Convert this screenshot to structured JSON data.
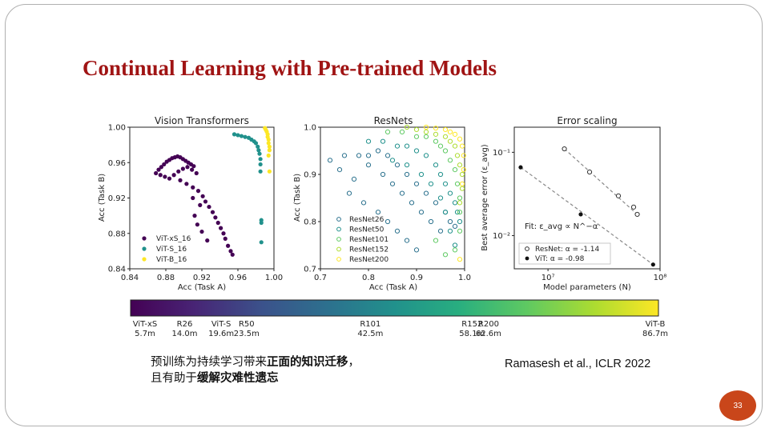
{
  "slide": {
    "title": "Continual Learning with Pre-trained Models",
    "caption": {
      "line1_plain": "预训练为持续学习带来",
      "line1_bold": "正面的知识迁移",
      "line1_end": "，",
      "line2_plain": "且有助于",
      "line2_bold": "缓解灾难性遗忘"
    },
    "citation": "Ramasesh et al., ICLR 2022",
    "page_number": "33"
  },
  "colors": {
    "title": "#a01414",
    "badge": "#c9461a",
    "vit_xs": "#440154",
    "vit_s": "#21918c",
    "vit_b": "#fde725"
  },
  "chart_data": [
    {
      "type": "scatter",
      "title": "Vision Transformers",
      "xlabel": "Acc (Task A)",
      "ylabel": "Acc (Task B)",
      "xlim": [
        0.84,
        1.0
      ],
      "ylim": [
        0.84,
        1.0
      ],
      "xticks": [
        "0.84",
        "0.88",
        "0.92",
        "0.96",
        "1.00"
      ],
      "yticks": [
        "0.84",
        "0.88",
        "0.92",
        "0.96",
        "1.00"
      ],
      "series": [
        {
          "name": "ViT-xS_16",
          "color": "#440154",
          "marker": "filled",
          "points": [
            [
              0.869,
              0.948
            ],
            [
              0.872,
              0.952
            ],
            [
              0.875,
              0.955
            ],
            [
              0.878,
              0.958
            ],
            [
              0.881,
              0.961
            ],
            [
              0.884,
              0.963
            ],
            [
              0.887,
              0.965
            ],
            [
              0.89,
              0.966
            ],
            [
              0.893,
              0.967
            ],
            [
              0.896,
              0.966
            ],
            [
              0.899,
              0.964
            ],
            [
              0.902,
              0.962
            ],
            [
              0.905,
              0.96
            ],
            [
              0.908,
              0.958
            ],
            [
              0.911,
              0.956
            ],
            [
              0.874,
              0.946
            ],
            [
              0.879,
              0.944
            ],
            [
              0.884,
              0.942
            ],
            [
              0.889,
              0.946
            ],
            [
              0.894,
              0.95
            ],
            [
              0.899,
              0.953
            ],
            [
              0.904,
              0.955
            ],
            [
              0.909,
              0.952
            ],
            [
              0.914,
              0.948
            ],
            [
              0.896,
              0.94
            ],
            [
              0.903,
              0.936
            ],
            [
              0.91,
              0.932
            ],
            [
              0.916,
              0.928
            ],
            [
              0.921,
              0.922
            ],
            [
              0.924,
              0.916
            ],
            [
              0.928,
              0.91
            ],
            [
              0.932,
              0.904
            ],
            [
              0.935,
              0.898
            ],
            [
              0.938,
              0.892
            ],
            [
              0.941,
              0.886
            ],
            [
              0.944,
              0.88
            ],
            [
              0.946,
              0.874
            ],
            [
              0.949,
              0.866
            ],
            [
              0.952,
              0.86
            ],
            [
              0.954,
              0.856
            ],
            [
              0.926,
              0.872
            ],
            [
              0.92,
              0.882
            ],
            [
              0.915,
              0.89
            ],
            [
              0.912,
              0.9
            ],
            [
              0.918,
              0.912
            ],
            [
              0.91,
              0.92
            ]
          ]
        },
        {
          "name": "ViT-S_16",
          "color": "#21918c",
          "marker": "filled",
          "points": [
            [
              0.956,
              0.992
            ],
            [
              0.96,
              0.991
            ],
            [
              0.964,
              0.99
            ],
            [
              0.968,
              0.989
            ],
            [
              0.972,
              0.988
            ],
            [
              0.975,
              0.986
            ],
            [
              0.978,
              0.984
            ],
            [
              0.98,
              0.982
            ],
            [
              0.982,
              0.978
            ],
            [
              0.983,
              0.974
            ],
            [
              0.984,
              0.97
            ],
            [
              0.985,
              0.964
            ],
            [
              0.985,
              0.958
            ],
            [
              0.985,
              0.95
            ],
            [
              0.986,
              0.895
            ],
            [
              0.986,
              0.892
            ],
            [
              0.986,
              0.87
            ]
          ]
        },
        {
          "name": "ViT-B_16",
          "color": "#fde725",
          "marker": "filled",
          "points": [
            [
              0.99,
              0.999
            ],
            [
              0.991,
              0.997
            ],
            [
              0.992,
              0.995
            ],
            [
              0.993,
              0.992
            ],
            [
              0.993,
              0.989
            ],
            [
              0.994,
              0.986
            ],
            [
              0.994,
              0.982
            ],
            [
              0.995,
              0.978
            ],
            [
              0.995,
              0.974
            ],
            [
              0.994,
              0.968
            ],
            [
              0.995,
              0.95
            ]
          ]
        }
      ],
      "legend": "lower-left"
    },
    {
      "type": "scatter",
      "title": "ResNets",
      "xlabel": "Acc (Task A)",
      "ylabel": "Acc (Task B)",
      "xlim": [
        0.7,
        1.0
      ],
      "ylim": [
        0.7,
        1.0
      ],
      "xticks": [
        "0.7",
        "0.8",
        "0.9",
        "1.0"
      ],
      "yticks": [
        "0.7",
        "0.8",
        "0.9",
        "1.0"
      ],
      "series": [
        {
          "name": "ResNet26",
          "color": "#2c728e",
          "marker": "hollow",
          "points": [
            [
              0.72,
              0.93
            ],
            [
              0.75,
              0.94
            ],
            [
              0.78,
              0.94
            ],
            [
              0.8,
              0.94
            ],
            [
              0.82,
              0.95
            ],
            [
              0.84,
              0.94
            ],
            [
              0.86,
              0.92
            ],
            [
              0.88,
              0.9
            ],
            [
              0.9,
              0.88
            ],
            [
              0.92,
              0.86
            ],
            [
              0.94,
              0.84
            ],
            [
              0.96,
              0.82
            ],
            [
              0.97,
              0.8
            ],
            [
              0.98,
              0.79
            ],
            [
              0.74,
              0.91
            ],
            [
              0.77,
              0.89
            ],
            [
              0.8,
              0.92
            ],
            [
              0.83,
              0.9
            ],
            [
              0.85,
              0.88
            ],
            [
              0.87,
              0.86
            ],
            [
              0.89,
              0.84
            ],
            [
              0.91,
              0.82
            ],
            [
              0.93,
              0.8
            ],
            [
              0.95,
              0.78
            ],
            [
              0.76,
              0.86
            ],
            [
              0.79,
              0.84
            ],
            [
              0.82,
              0.82
            ],
            [
              0.84,
              0.8
            ],
            [
              0.86,
              0.78
            ],
            [
              0.88,
              0.76
            ],
            [
              0.9,
              0.74
            ]
          ]
        },
        {
          "name": "ResNet50",
          "color": "#21918c",
          "marker": "hollow",
          "points": [
            [
              0.8,
              0.97
            ],
            [
              0.83,
              0.97
            ],
            [
              0.86,
              0.96
            ],
            [
              0.88,
              0.96
            ],
            [
              0.9,
              0.95
            ],
            [
              0.92,
              0.94
            ],
            [
              0.94,
              0.92
            ],
            [
              0.95,
              0.9
            ],
            [
              0.96,
              0.88
            ],
            [
              0.97,
              0.86
            ],
            [
              0.98,
              0.84
            ],
            [
              0.985,
              0.82
            ],
            [
              0.99,
              0.8
            ],
            [
              0.85,
              0.93
            ],
            [
              0.88,
              0.92
            ],
            [
              0.91,
              0.9
            ],
            [
              0.93,
              0.88
            ],
            [
              0.95,
              0.85
            ],
            [
              0.96,
              0.82
            ],
            [
              0.97,
              0.78
            ],
            [
              0.98,
              0.75
            ]
          ]
        },
        {
          "name": "ResNet101",
          "color": "#5ec962",
          "marker": "hollow",
          "points": [
            [
              0.84,
              0.99
            ],
            [
              0.87,
              0.99
            ],
            [
              0.9,
              0.98
            ],
            [
              0.92,
              0.98
            ],
            [
              0.94,
              0.97
            ],
            [
              0.95,
              0.96
            ],
            [
              0.96,
              0.95
            ],
            [
              0.97,
              0.93
            ],
            [
              0.98,
              0.91
            ],
            [
              0.985,
              0.88
            ],
            [
              0.99,
              0.85
            ],
            [
              0.99,
              0.82
            ],
            [
              0.99,
              0.78
            ],
            [
              0.98,
              0.74
            ],
            [
              0.96,
              0.73
            ],
            [
              0.94,
              0.76
            ]
          ]
        },
        {
          "name": "ResNet152",
          "color": "#addc30",
          "marker": "hollow",
          "points": [
            [
              0.88,
              1.0
            ],
            [
              0.9,
              0.995
            ],
            [
              0.92,
              0.99
            ],
            [
              0.94,
              0.985
            ],
            [
              0.96,
              0.98
            ],
            [
              0.97,
              0.97
            ],
            [
              0.98,
              0.96
            ],
            [
              0.985,
              0.94
            ],
            [
              0.99,
              0.92
            ],
            [
              0.995,
              0.9
            ],
            [
              0.995,
              0.87
            ],
            [
              0.99,
              0.84
            ]
          ]
        },
        {
          "name": "ResNet200",
          "color": "#fde725",
          "marker": "hollow",
          "points": [
            [
              0.92,
              1.0
            ],
            [
              0.94,
              0.998
            ],
            [
              0.96,
              0.995
            ],
            [
              0.97,
              0.99
            ],
            [
              0.98,
              0.985
            ],
            [
              0.99,
              0.975
            ],
            [
              0.995,
              0.96
            ],
            [
              0.998,
              0.94
            ],
            [
              0.998,
              0.91
            ],
            [
              0.995,
              0.88
            ],
            [
              0.99,
              0.72
            ]
          ]
        }
      ],
      "legend": "lower-left"
    },
    {
      "type": "scatter",
      "title": "Error scaling",
      "xlabel": "Model parameters (N)",
      "ylabel": "Best average error (ε_avg)",
      "xscale": "log",
      "yscale": "log",
      "xlim": [
        5000000,
        100000000
      ],
      "ylim": [
        0.004,
        0.2
      ],
      "xticks": [
        "10⁷",
        "10⁸"
      ],
      "yticks": [
        "10⁻¹",
        "10⁻²"
      ],
      "annotation": "Fit: ε_avg ∝ N^−α",
      "series": [
        {
          "name": "ResNet: α = -1.14",
          "color": "#333333",
          "marker": "hollow",
          "points": [
            [
              14000000,
              0.11
            ],
            [
              23500000,
              0.058
            ],
            [
              42500000,
              0.03
            ],
            [
              58100000,
              0.022
            ],
            [
              62600000,
              0.018
            ]
          ]
        },
        {
          "name": "ViT: α = -0.98",
          "color": "#111111",
          "marker": "filled",
          "points": [
            [
              5700000,
              0.066
            ],
            [
              19600000,
              0.018
            ],
            [
              86700000,
              0.0045
            ]
          ]
        }
      ],
      "legend": "lower-left"
    },
    {
      "type": "colorbar",
      "labels": [
        {
          "name": "ViT-xS",
          "params": "5.7m",
          "value": 5.7
        },
        {
          "name": "R26",
          "params": "14.0m",
          "value": 14.0
        },
        {
          "name": "ViT-S",
          "params": "19.6m",
          "value": 19.6
        },
        {
          "name": "R50",
          "params": "23.5m",
          "value": 23.5
        },
        {
          "name": "R101",
          "params": "42.5m",
          "value": 42.5
        },
        {
          "name": "R152",
          "params": "58.1m",
          "value": 58.1
        },
        {
          "name": "R200",
          "params": "62.6m",
          "value": 62.6
        },
        {
          "name": "ViT-B",
          "params": "86.7m",
          "value": 86.7
        }
      ],
      "range": [
        5.7,
        86.7
      ]
    }
  ]
}
